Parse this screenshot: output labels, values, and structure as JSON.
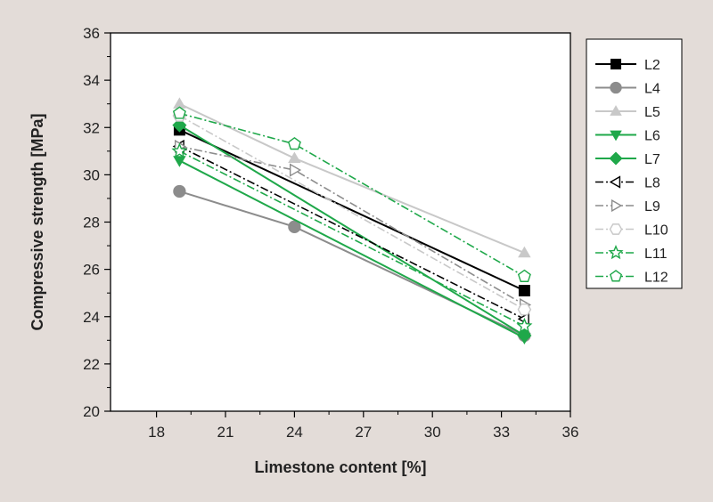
{
  "chart_data": {
    "type": "line",
    "title": "",
    "xlabel": "Limestone content [%]",
    "ylabel": "Compressive strength [MPa]",
    "xlim": [
      16,
      36
    ],
    "ylim": [
      20,
      36
    ],
    "xticks": [
      18,
      21,
      24,
      27,
      30,
      33,
      36
    ],
    "yticks": [
      20,
      22,
      24,
      26,
      28,
      30,
      32,
      34,
      36
    ],
    "grid": false,
    "legend_position": "right, outside plot",
    "series": [
      {
        "name": "L2",
        "x": [
          19,
          34
        ],
        "y": [
          31.9,
          25.1
        ],
        "color": "#000000",
        "line": "solid",
        "marker": "square",
        "fill": "filled"
      },
      {
        "name": "L4",
        "x": [
          19,
          24,
          34
        ],
        "y": [
          29.3,
          27.8,
          23.2
        ],
        "color": "#8c8c8c",
        "line": "solid",
        "marker": "circle",
        "fill": "filled"
      },
      {
        "name": "L5",
        "x": [
          19,
          24,
          34
        ],
        "y": [
          33.0,
          30.7,
          26.7
        ],
        "color": "#c8c8c8",
        "line": "solid",
        "marker": "triangle-up",
        "fill": "filled"
      },
      {
        "name": "L6",
        "x": [
          19,
          34
        ],
        "y": [
          30.6,
          23.1
        ],
        "color": "#1fa84a",
        "line": "solid",
        "marker": "triangle-down",
        "fill": "filled"
      },
      {
        "name": "L7",
        "x": [
          19,
          34
        ],
        "y": [
          32.1,
          23.2
        ],
        "color": "#1fa84a",
        "line": "solid",
        "marker": "diamond",
        "fill": "filled"
      },
      {
        "name": "L8",
        "x": [
          19,
          34
        ],
        "y": [
          31.2,
          23.9
        ],
        "color": "#000000",
        "line": "dashdot",
        "marker": "triangle-left",
        "fill": "open"
      },
      {
        "name": "L9",
        "x": [
          19,
          24,
          34
        ],
        "y": [
          31.2,
          30.2,
          24.5
        ],
        "color": "#8c8c8c",
        "line": "dashdot",
        "marker": "triangle-right",
        "fill": "open"
      },
      {
        "name": "L10",
        "x": [
          19,
          34
        ],
        "y": [
          32.5,
          24.3
        ],
        "color": "#c8c8c8",
        "line": "dashdot",
        "marker": "hexagon",
        "fill": "open"
      },
      {
        "name": "L11",
        "x": [
          19,
          34
        ],
        "y": [
          31.0,
          23.6
        ],
        "color": "#1fa84a",
        "line": "dashdot",
        "marker": "star",
        "fill": "open"
      },
      {
        "name": "L12",
        "x": [
          19,
          24,
          34
        ],
        "y": [
          32.6,
          31.3,
          25.7
        ],
        "color": "#1fa84a",
        "line": "dashdot",
        "marker": "pentagon",
        "fill": "open"
      }
    ]
  }
}
